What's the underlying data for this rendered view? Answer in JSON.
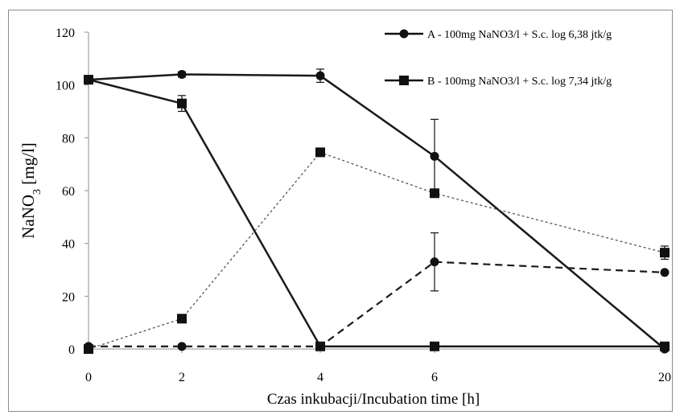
{
  "chart_data": {
    "type": "line",
    "categories": [
      "0",
      "2",
      "4",
      "6",
      "20"
    ],
    "ylabel": "NaNO3 [mg/l]",
    "ylabel_parts": {
      "pre": "NaNO",
      "sub": "3",
      "post": " [mg/l]"
    },
    "xlabel": "Czas inkubacji/Incubation time [h]",
    "ylim": [
      0,
      120
    ],
    "yticks": [
      0,
      20,
      40,
      60,
      80,
      100,
      120
    ],
    "grid": false,
    "legend_position": "top-right",
    "series": [
      {
        "name": "A -  100mg NaNO3/l  + S.c. log 6,38 jtk/g",
        "marker": "circle",
        "line": "solid",
        "values": [
          102,
          104,
          103.5,
          73,
          0
        ],
        "errors": [
          1,
          1,
          2.5,
          14,
          0
        ]
      },
      {
        "name": "B -  100mg NaNO3/l  + S.c. log 7,34 jtk/g",
        "marker": "square",
        "line": "solid",
        "values": [
          102,
          93,
          1,
          1,
          1
        ],
        "errors": [
          1,
          3,
          0,
          0,
          0
        ]
      },
      {
        "marker": "circle",
        "line": "dashed",
        "values": [
          1,
          1,
          1,
          33,
          29
        ],
        "errors": [
          0,
          0,
          0,
          11,
          0
        ]
      },
      {
        "marker": "square",
        "line": "dotted",
        "values": [
          0,
          11.5,
          74.5,
          59,
          36.5
        ],
        "errors": [
          0,
          0,
          1.5,
          0,
          2.5
        ]
      }
    ]
  }
}
